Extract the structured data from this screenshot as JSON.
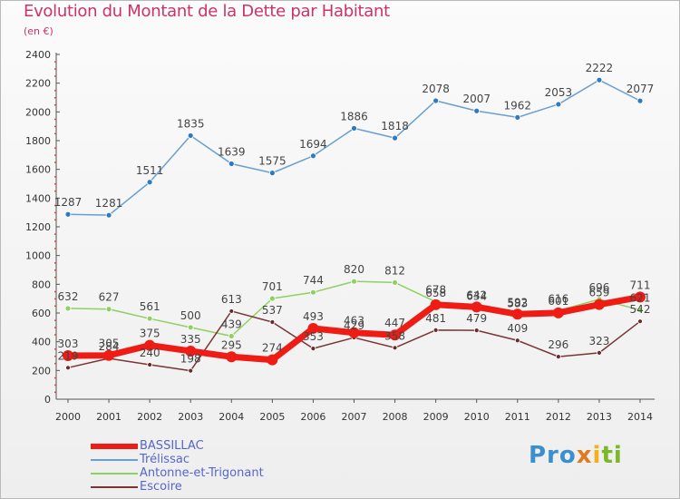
{
  "title": "Evolution du Montant de la Dette par Habitant",
  "subtitle": "(en €)",
  "brand": [
    "Pro",
    "x",
    "i",
    "ti"
  ],
  "chart_data": {
    "type": "line",
    "x": [
      "2000",
      "2001",
      "2002",
      "2003",
      "2004",
      "2005",
      "2006",
      "2007",
      "2008",
      "2009",
      "2010",
      "2011",
      "2012",
      "2013",
      "2014"
    ],
    "ylim": [
      0,
      2400
    ],
    "yticks": [
      0,
      200,
      400,
      600,
      800,
      1000,
      1200,
      1400,
      1600,
      1800,
      2000,
      2200,
      2400
    ],
    "grid": false,
    "legend": "bottom-left",
    "series": [
      {
        "name": "Trélissac",
        "color": "#6a9fd1",
        "marker": "#2f79c0",
        "width": 1.5,
        "markerSize": 3,
        "values": [
          1287,
          1281,
          1511,
          1835,
          1639,
          1575,
          1694,
          1886,
          1818,
          2078,
          2007,
          1962,
          2053,
          2222,
          2077
        ]
      },
      {
        "name": "Antonne-et-Trigonant",
        "color": "#8fd063",
        "marker": "#8fd063",
        "width": 1.5,
        "markerSize": 3,
        "values": [
          632,
          627,
          561,
          500,
          439,
          701,
          744,
          820,
          812,
          678,
          634,
          583,
          616,
          696,
          621
        ]
      },
      {
        "name": "Escoire",
        "color": "#7a3434",
        "marker": "#6a2a2a",
        "width": 1.5,
        "markerSize": 2.5,
        "values": [
          219,
          284,
          240,
          198,
          613,
          537,
          353,
          429,
          358,
          481,
          479,
          409,
          296,
          323,
          542
        ]
      },
      {
        "name": "BASSILLAC",
        "color": "#ee1c14",
        "marker": "#ee1c14",
        "width": 7,
        "markerSize": 6,
        "values": [
          303,
          305,
          375,
          335,
          295,
          274,
          493,
          463,
          447,
          658,
          642,
          592,
          601,
          659,
          711
        ]
      }
    ]
  }
}
